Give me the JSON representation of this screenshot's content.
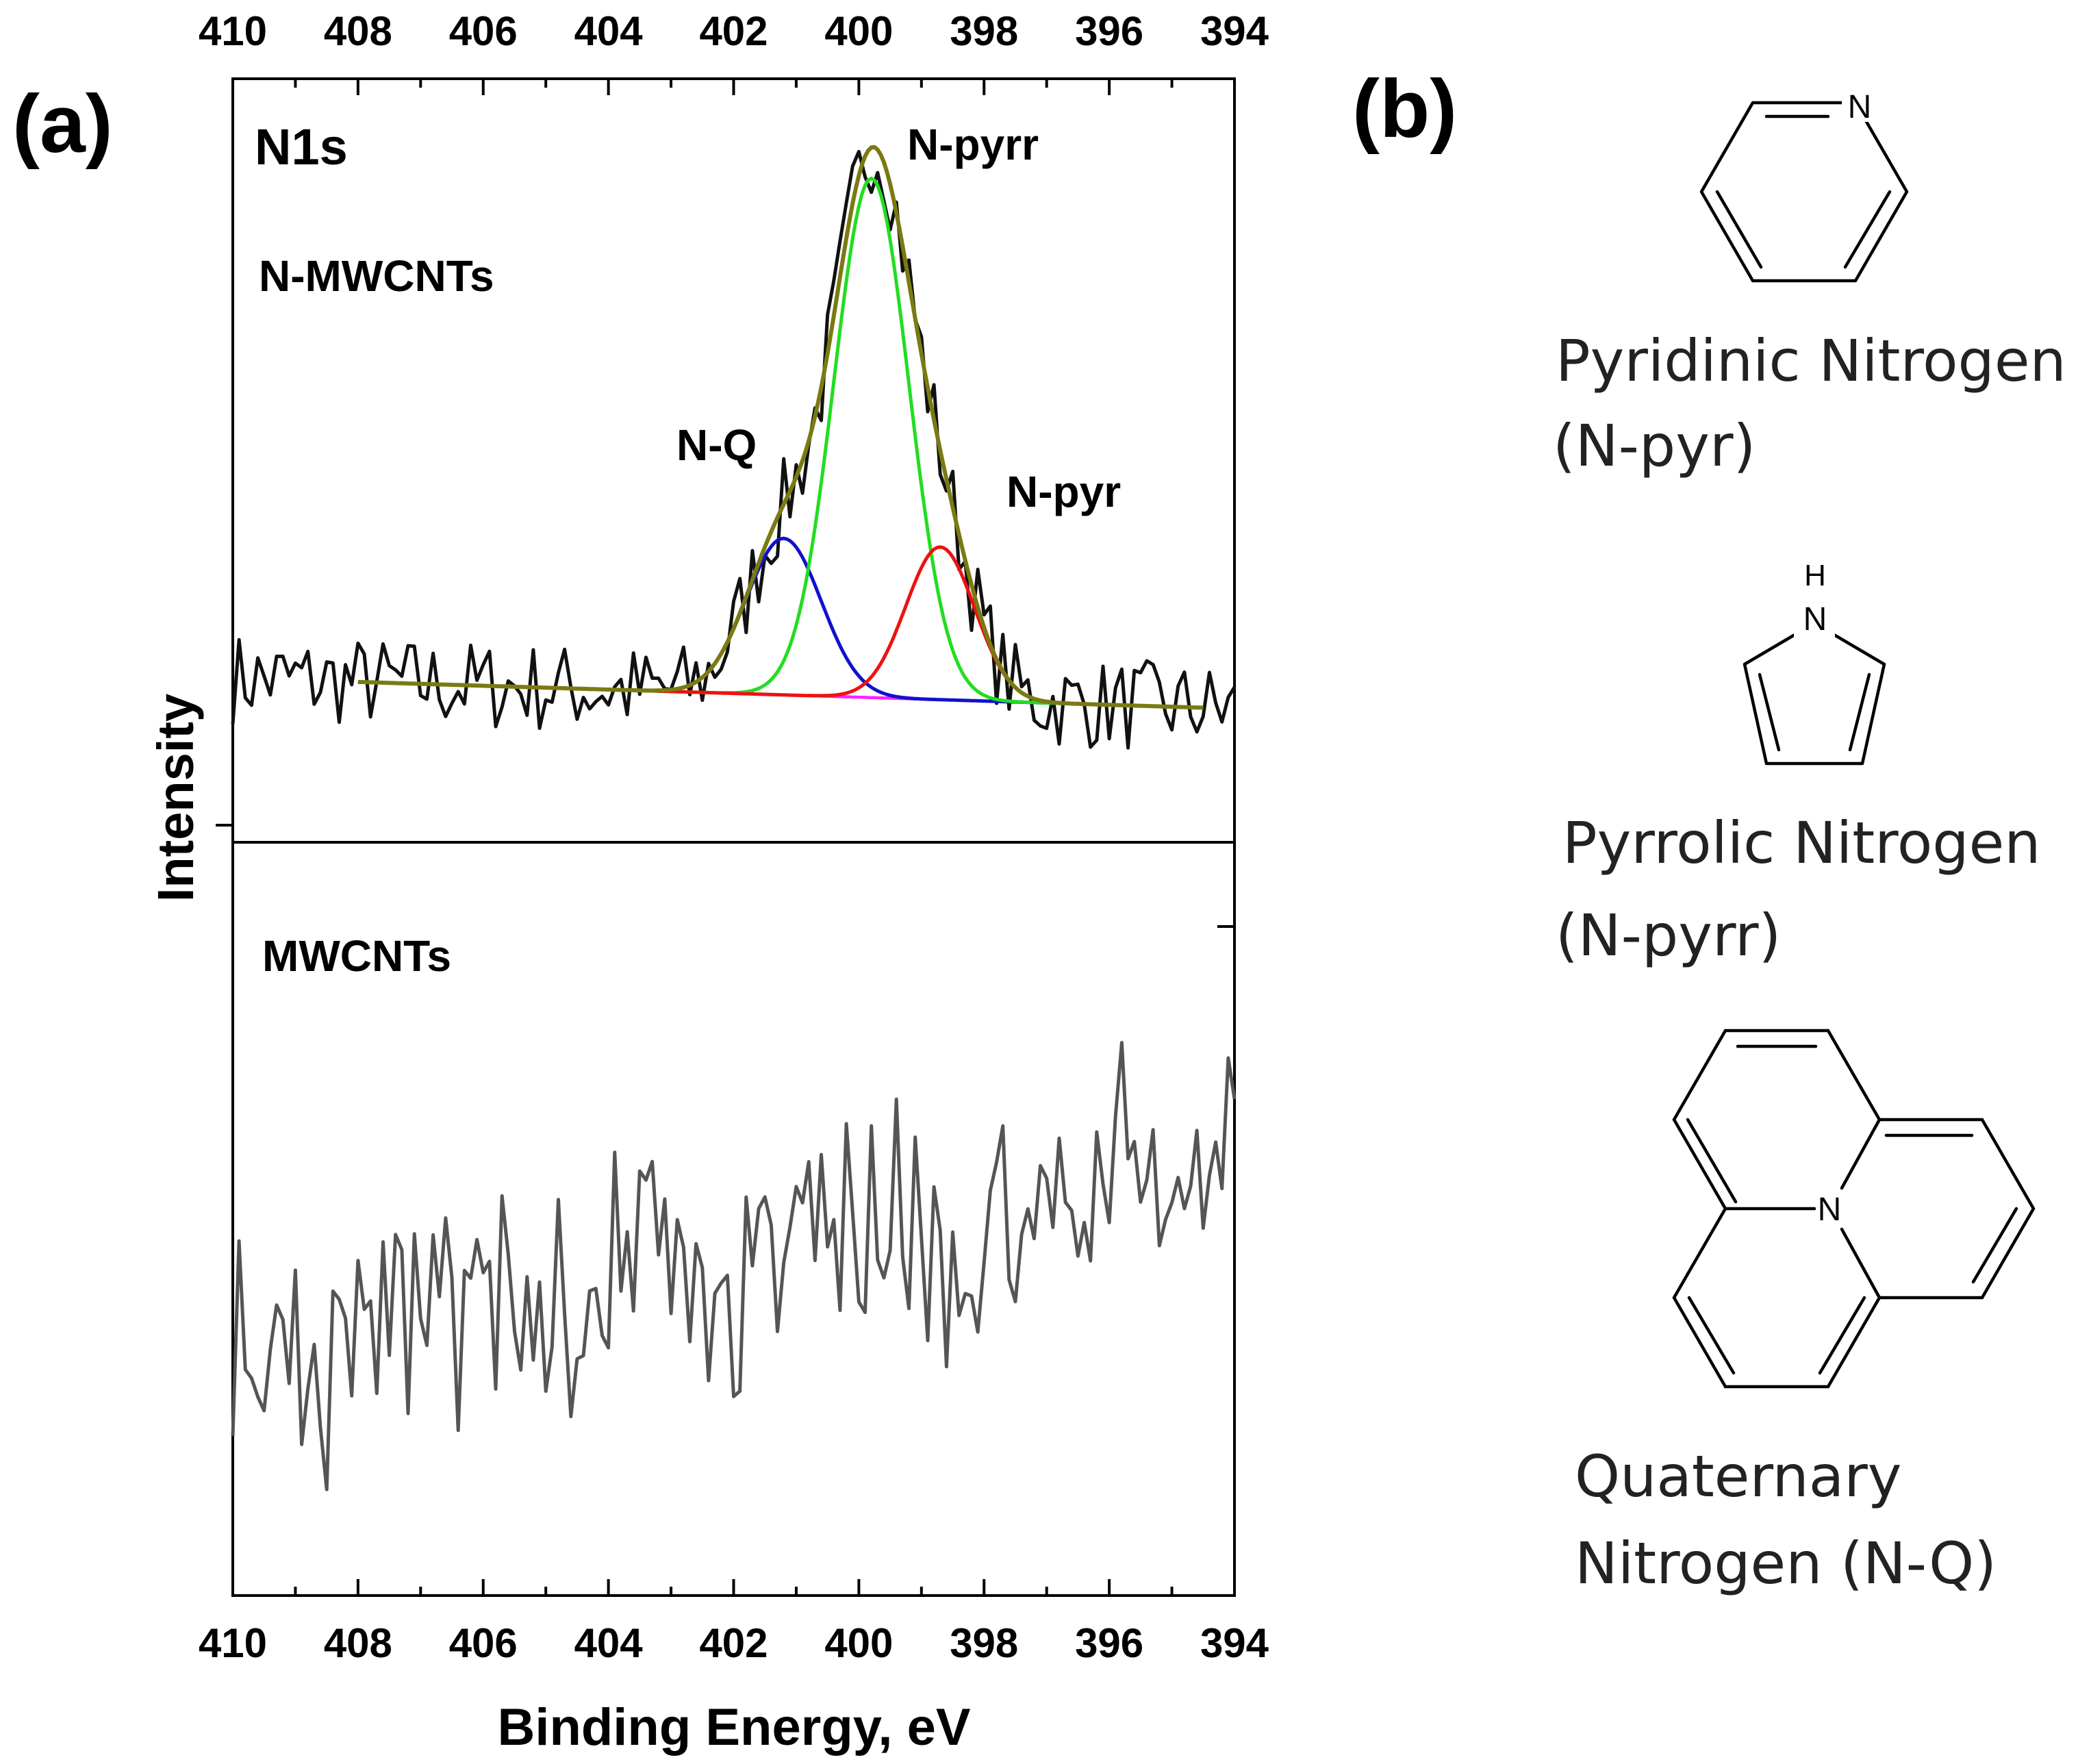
{
  "panels": {
    "a_label": "(a)",
    "b_label": "(b)"
  },
  "chart_data": {
    "type": "line",
    "title": "N1s",
    "xlabel": "Binding Energy, eV",
    "ylabel": "Intensity",
    "xlim": [
      410,
      394
    ],
    "x_ticks": [
      "410",
      "408",
      "406",
      "404",
      "402",
      "400",
      "398",
      "396",
      "394"
    ],
    "colors": {
      "raw": "#111111",
      "envelope": "#7a7a12",
      "n_pyrr": "#22dd22",
      "n_q": "#1111cc",
      "n_pyr": "#ee1111",
      "background": "#ff22ff",
      "mwcnts": "#555555"
    },
    "top_panel": {
      "sample_label": "N-MWCNTs",
      "peak_labels": {
        "n_pyrr": "N-pyrr",
        "n_q": "N-Q",
        "n_pyr": "N-pyr"
      },
      "fit_range": [
        408,
        394.5
      ],
      "ylim": [
        0,
        1
      ],
      "baseline": {
        "start": 0.215,
        "end": 0.175
      },
      "components": [
        {
          "name": "N-Q",
          "center": 401.2,
          "sigma": 0.6,
          "amplitude": 0.205
        },
        {
          "name": "N-pyrr",
          "center": 399.8,
          "sigma": 0.6,
          "amplitude": 0.68
        },
        {
          "name": "N-pyr",
          "center": 398.7,
          "sigma": 0.55,
          "amplitude": 0.2
        }
      ],
      "noise_amplitude": 0.06
    },
    "bottom_panel": {
      "sample_label": "MWCNTs",
      "ylim": [
        0,
        1
      ],
      "trend_start": 0.3,
      "trend_end": 0.58,
      "noise_amplitude": 0.15
    }
  },
  "structures": [
    {
      "name": "Pyridinic Nitrogen",
      "abbr": "(N-pyr)",
      "atom": "N"
    },
    {
      "name": "Pyrrolic Nitrogen",
      "abbr": "(N-pyrr)",
      "atom": "N",
      "h_atom": "H"
    },
    {
      "name_line1": "Quaternary",
      "name_line2": "Nitrogen (N-Q)",
      "atom": "N"
    }
  ]
}
